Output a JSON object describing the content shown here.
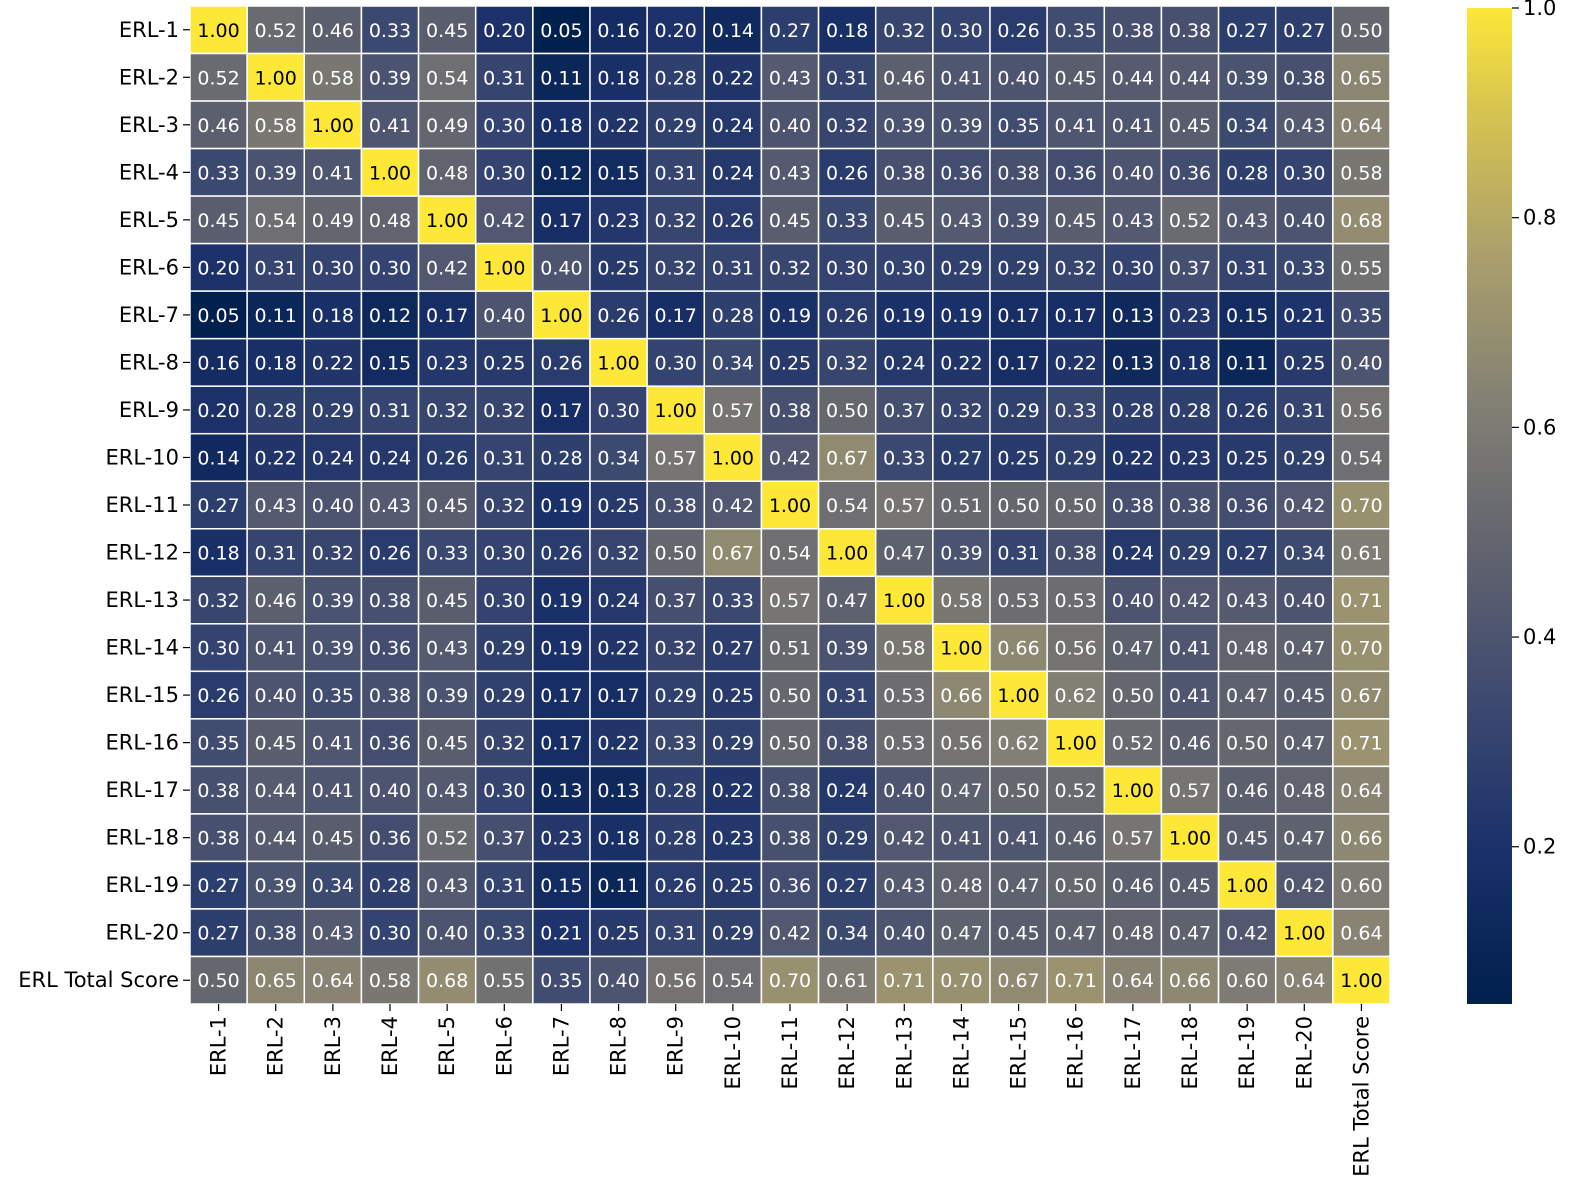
{
  "chart_data": {
    "type": "heatmap",
    "title": "",
    "xlabel": "",
    "ylabel": "",
    "labels": [
      "ERL-1",
      "ERL-2",
      "ERL-3",
      "ERL-4",
      "ERL-5",
      "ERL-6",
      "ERL-7",
      "ERL-8",
      "ERL-9",
      "ERL-10",
      "ERL-11",
      "ERL-12",
      "ERL-13",
      "ERL-14",
      "ERL-15",
      "ERL-16",
      "ERL-17",
      "ERL-18",
      "ERL-19",
      "ERL-20",
      "ERL Total Score"
    ],
    "matrix": [
      [
        1.0,
        0.52,
        0.46,
        0.33,
        0.45,
        0.2,
        0.05,
        0.16,
        0.2,
        0.14,
        0.27,
        0.18,
        0.32,
        0.3,
        0.26,
        0.35,
        0.38,
        0.38,
        0.27,
        0.27,
        0.5
      ],
      [
        0.52,
        1.0,
        0.58,
        0.39,
        0.54,
        0.31,
        0.11,
        0.18,
        0.28,
        0.22,
        0.43,
        0.31,
        0.46,
        0.41,
        0.4,
        0.45,
        0.44,
        0.44,
        0.39,
        0.38,
        0.65
      ],
      [
        0.46,
        0.58,
        1.0,
        0.41,
        0.49,
        0.3,
        0.18,
        0.22,
        0.29,
        0.24,
        0.4,
        0.32,
        0.39,
        0.39,
        0.35,
        0.41,
        0.41,
        0.45,
        0.34,
        0.43,
        0.64
      ],
      [
        0.33,
        0.39,
        0.41,
        1.0,
        0.48,
        0.3,
        0.12,
        0.15,
        0.31,
        0.24,
        0.43,
        0.26,
        0.38,
        0.36,
        0.38,
        0.36,
        0.4,
        0.36,
        0.28,
        0.3,
        0.58
      ],
      [
        0.45,
        0.54,
        0.49,
        0.48,
        1.0,
        0.42,
        0.17,
        0.23,
        0.32,
        0.26,
        0.45,
        0.33,
        0.45,
        0.43,
        0.39,
        0.45,
        0.43,
        0.52,
        0.43,
        0.4,
        0.68
      ],
      [
        0.2,
        0.31,
        0.3,
        0.3,
        0.42,
        1.0,
        0.4,
        0.25,
        0.32,
        0.31,
        0.32,
        0.3,
        0.3,
        0.29,
        0.29,
        0.32,
        0.3,
        0.37,
        0.31,
        0.33,
        0.55
      ],
      [
        0.05,
        0.11,
        0.18,
        0.12,
        0.17,
        0.4,
        1.0,
        0.26,
        0.17,
        0.28,
        0.19,
        0.26,
        0.19,
        0.19,
        0.17,
        0.17,
        0.13,
        0.23,
        0.15,
        0.21,
        0.35
      ],
      [
        0.16,
        0.18,
        0.22,
        0.15,
        0.23,
        0.25,
        0.26,
        1.0,
        0.3,
        0.34,
        0.25,
        0.32,
        0.24,
        0.22,
        0.17,
        0.22,
        0.13,
        0.18,
        0.11,
        0.25,
        0.4
      ],
      [
        0.2,
        0.28,
        0.29,
        0.31,
        0.32,
        0.32,
        0.17,
        0.3,
        1.0,
        0.57,
        0.38,
        0.5,
        0.37,
        0.32,
        0.29,
        0.33,
        0.28,
        0.28,
        0.26,
        0.31,
        0.56
      ],
      [
        0.14,
        0.22,
        0.24,
        0.24,
        0.26,
        0.31,
        0.28,
        0.34,
        0.57,
        1.0,
        0.42,
        0.67,
        0.33,
        0.27,
        0.25,
        0.29,
        0.22,
        0.23,
        0.25,
        0.29,
        0.54
      ],
      [
        0.27,
        0.43,
        0.4,
        0.43,
        0.45,
        0.32,
        0.19,
        0.25,
        0.38,
        0.42,
        1.0,
        0.54,
        0.57,
        0.51,
        0.5,
        0.5,
        0.38,
        0.38,
        0.36,
        0.42,
        0.7
      ],
      [
        0.18,
        0.31,
        0.32,
        0.26,
        0.33,
        0.3,
        0.26,
        0.32,
        0.5,
        0.67,
        0.54,
        1.0,
        0.47,
        0.39,
        0.31,
        0.38,
        0.24,
        0.29,
        0.27,
        0.34,
        0.61
      ],
      [
        0.32,
        0.46,
        0.39,
        0.38,
        0.45,
        0.3,
        0.19,
        0.24,
        0.37,
        0.33,
        0.57,
        0.47,
        1.0,
        0.58,
        0.53,
        0.53,
        0.4,
        0.42,
        0.43,
        0.4,
        0.71
      ],
      [
        0.3,
        0.41,
        0.39,
        0.36,
        0.43,
        0.29,
        0.19,
        0.22,
        0.32,
        0.27,
        0.51,
        0.39,
        0.58,
        1.0,
        0.66,
        0.56,
        0.47,
        0.41,
        0.48,
        0.47,
        0.7
      ],
      [
        0.26,
        0.4,
        0.35,
        0.38,
        0.39,
        0.29,
        0.17,
        0.17,
        0.29,
        0.25,
        0.5,
        0.31,
        0.53,
        0.66,
        1.0,
        0.62,
        0.5,
        0.41,
        0.47,
        0.45,
        0.67
      ],
      [
        0.35,
        0.45,
        0.41,
        0.36,
        0.45,
        0.32,
        0.17,
        0.22,
        0.33,
        0.29,
        0.5,
        0.38,
        0.53,
        0.56,
        0.62,
        1.0,
        0.52,
        0.46,
        0.5,
        0.47,
        0.71
      ],
      [
        0.38,
        0.44,
        0.41,
        0.4,
        0.43,
        0.3,
        0.13,
        0.13,
        0.28,
        0.22,
        0.38,
        0.24,
        0.4,
        0.47,
        0.5,
        0.52,
        1.0,
        0.57,
        0.46,
        0.48,
        0.64
      ],
      [
        0.38,
        0.44,
        0.45,
        0.36,
        0.52,
        0.37,
        0.23,
        0.18,
        0.28,
        0.23,
        0.38,
        0.29,
        0.42,
        0.41,
        0.41,
        0.46,
        0.57,
        1.0,
        0.45,
        0.47,
        0.66
      ],
      [
        0.27,
        0.39,
        0.34,
        0.28,
        0.43,
        0.31,
        0.15,
        0.11,
        0.26,
        0.25,
        0.36,
        0.27,
        0.43,
        0.48,
        0.47,
        0.5,
        0.46,
        0.45,
        1.0,
        0.42,
        0.6
      ],
      [
        0.27,
        0.38,
        0.43,
        0.3,
        0.4,
        0.33,
        0.21,
        0.25,
        0.31,
        0.29,
        0.42,
        0.34,
        0.4,
        0.47,
        0.45,
        0.47,
        0.48,
        0.47,
        0.42,
        1.0,
        0.64
      ],
      [
        0.5,
        0.65,
        0.64,
        0.58,
        0.68,
        0.55,
        0.35,
        0.4,
        0.56,
        0.54,
        0.7,
        0.61,
        0.71,
        0.7,
        0.67,
        0.71,
        0.64,
        0.66,
        0.6,
        0.64,
        1.0
      ]
    ],
    "value_format": "0.00",
    "colorbar": {
      "colormap": "cividis",
      "vmin": 0.05,
      "vmax": 1.0,
      "ticks": [
        0.2,
        0.4,
        0.6,
        0.8,
        1.0
      ],
      "tick_labels": [
        "0.2",
        "0.4",
        "0.6",
        "0.8",
        "1.0"
      ],
      "placement": "right"
    },
    "grid": true,
    "grid_color": "#ffffff",
    "annotation_light_text": "#ffffff",
    "annotation_dark_text": "#000000"
  }
}
